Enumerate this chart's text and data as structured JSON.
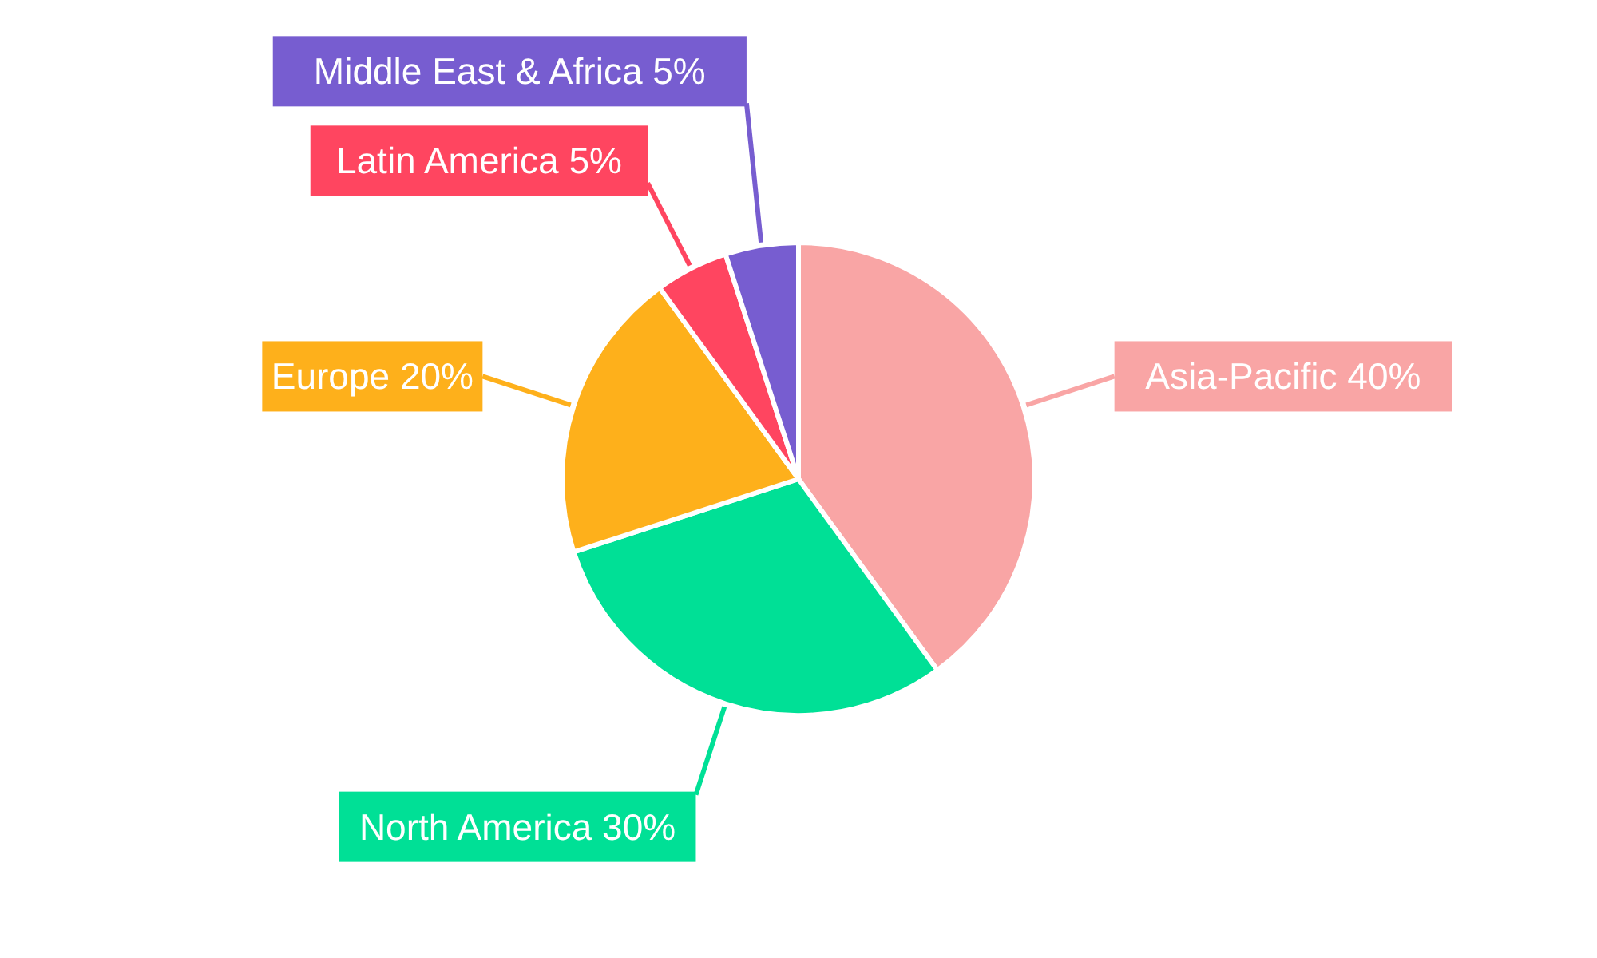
{
  "chart_data": {
    "type": "pie",
    "categories": [
      "Asia-Pacific",
      "North America",
      "Europe",
      "Latin America",
      "Middle East & Africa"
    ],
    "values": [
      40,
      30,
      20,
      5,
      5
    ],
    "colors": [
      "#f9a5a5",
      "#00e096",
      "#feb01b",
      "#ff4560",
      "#775dd0"
    ],
    "value_labels": [
      "40%",
      "30%",
      "20%",
      "5%",
      "5%"
    ]
  }
}
